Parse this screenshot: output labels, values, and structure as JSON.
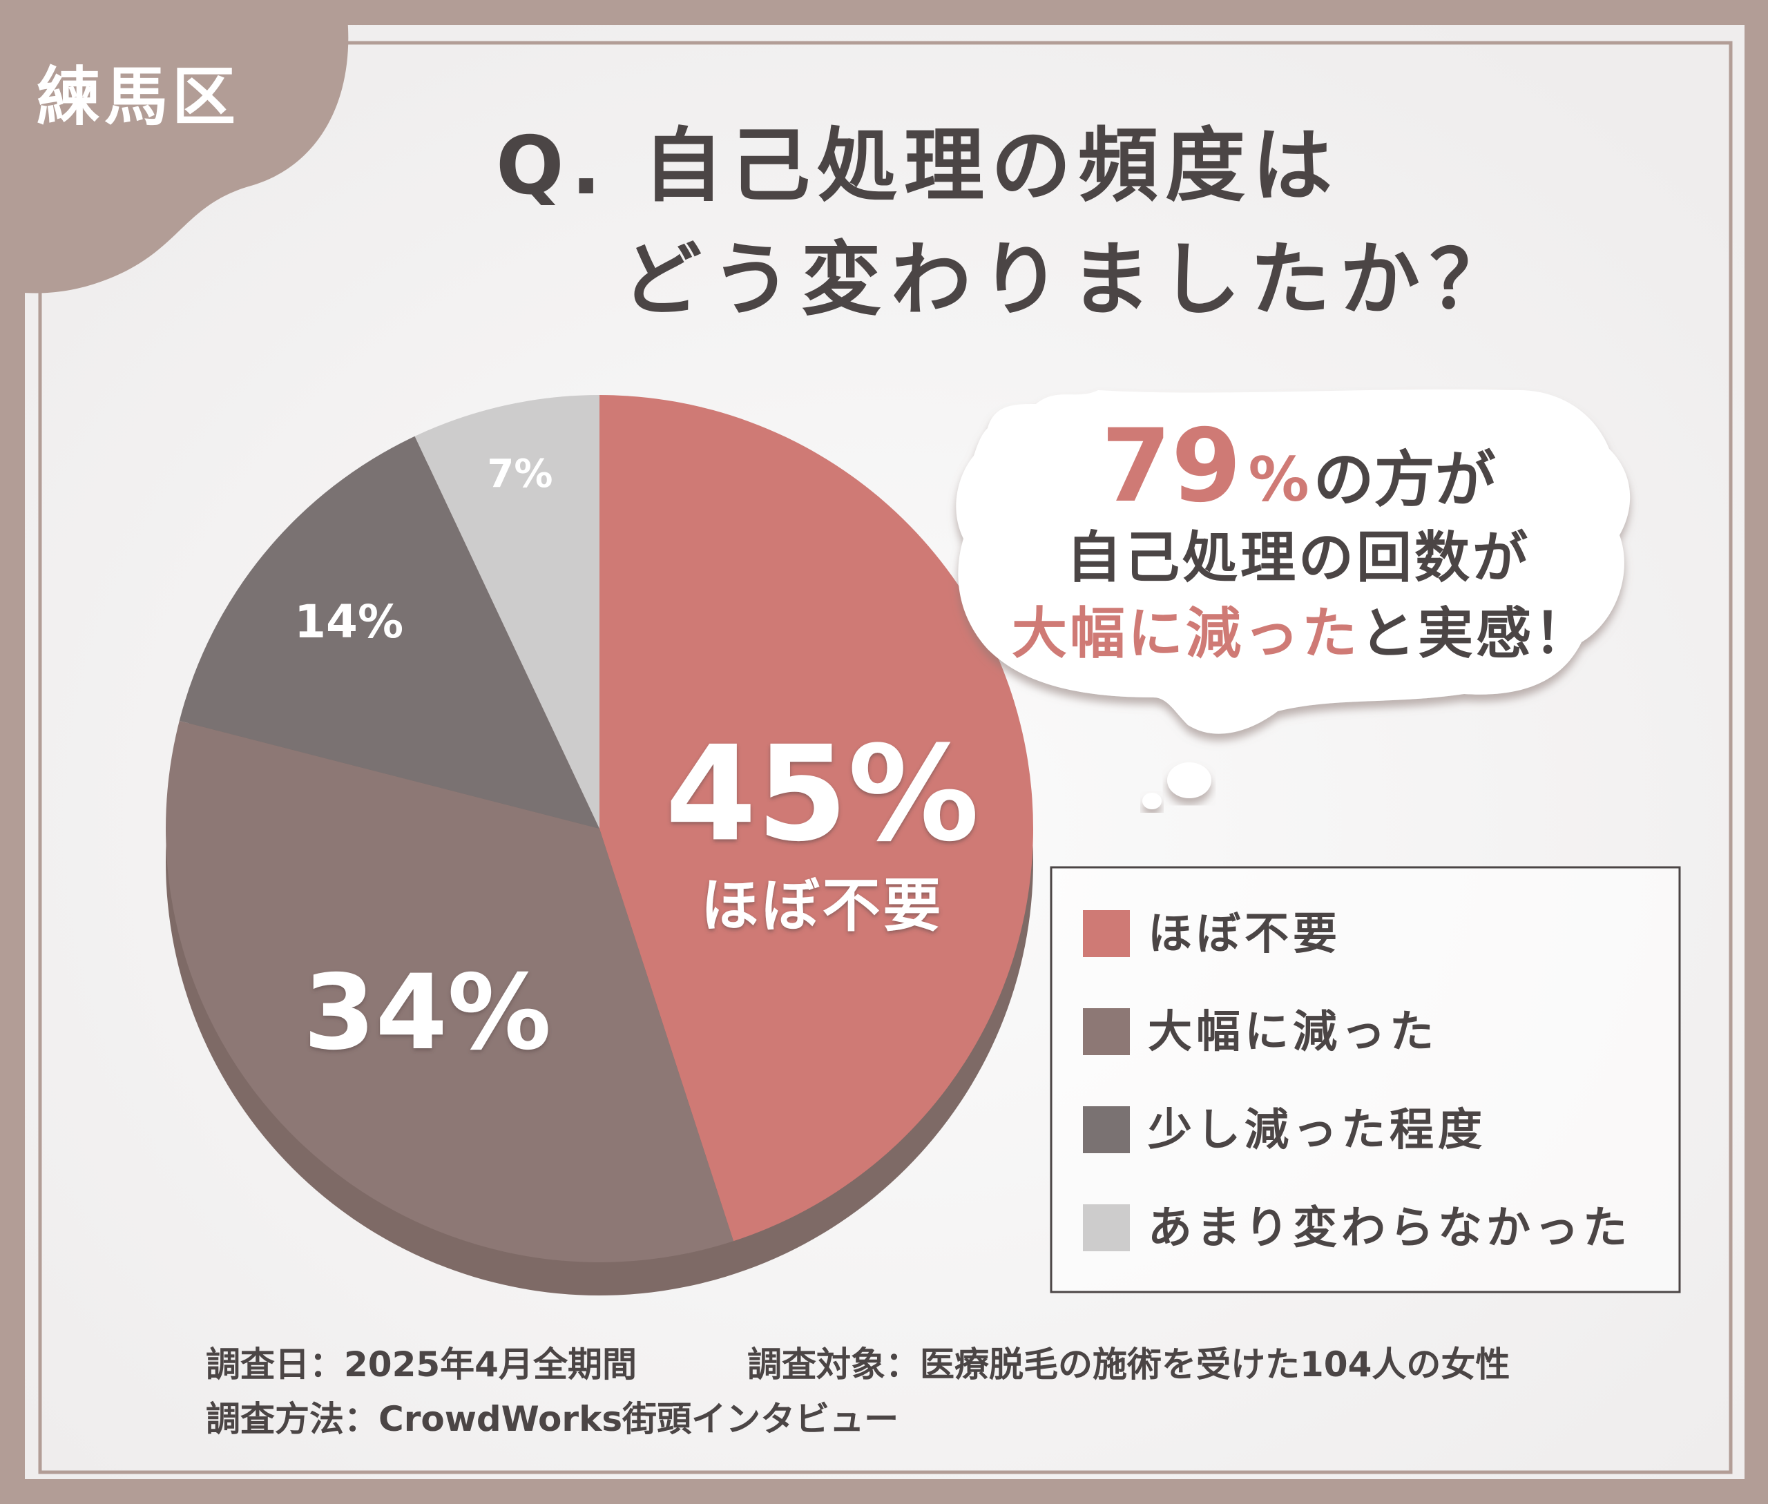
{
  "badge": {
    "label": "練馬区"
  },
  "title": {
    "line1": "Q. 自己処理の頻度は",
    "line2": "どう変わりましたか？"
  },
  "callout": {
    "line1_number": "79",
    "line1_percent": "%",
    "line1_rest": "の方が",
    "line2": "自己処理の回数が",
    "line3_highlight": "大幅に減った",
    "line3_rest": "と実感！"
  },
  "chart_data": {
    "type": "pie",
    "slices": [
      {
        "label": "ほぼ不要",
        "value": 45,
        "display": "45%",
        "color": "#cf7a75"
      },
      {
        "label": "大幅に減った",
        "value": 34,
        "display": "34%",
        "color": "#8d7875"
      },
      {
        "label": "少し減った程度",
        "value": 14,
        "display": "14%",
        "color": "#7a7272"
      },
      {
        "label": "あまり変わらなかった",
        "value": 7,
        "display": "7%",
        "color": "#cdcccc"
      }
    ],
    "highlight_label": "ほぼ不要",
    "legend_position": "right"
  },
  "footer": {
    "date": "調査日：2025年4月全期間",
    "target": "調査対象：医療脱毛の施術を受けた104人の女性",
    "method": "調査方法：CrowdWorks街頭インタビュー"
  },
  "colors": {
    "frame": "#b29d96",
    "accent": "#cf7a75",
    "text": "#4b4545",
    "pie_shadow": "#7e6a66",
    "page": "#f7f6f6"
  }
}
